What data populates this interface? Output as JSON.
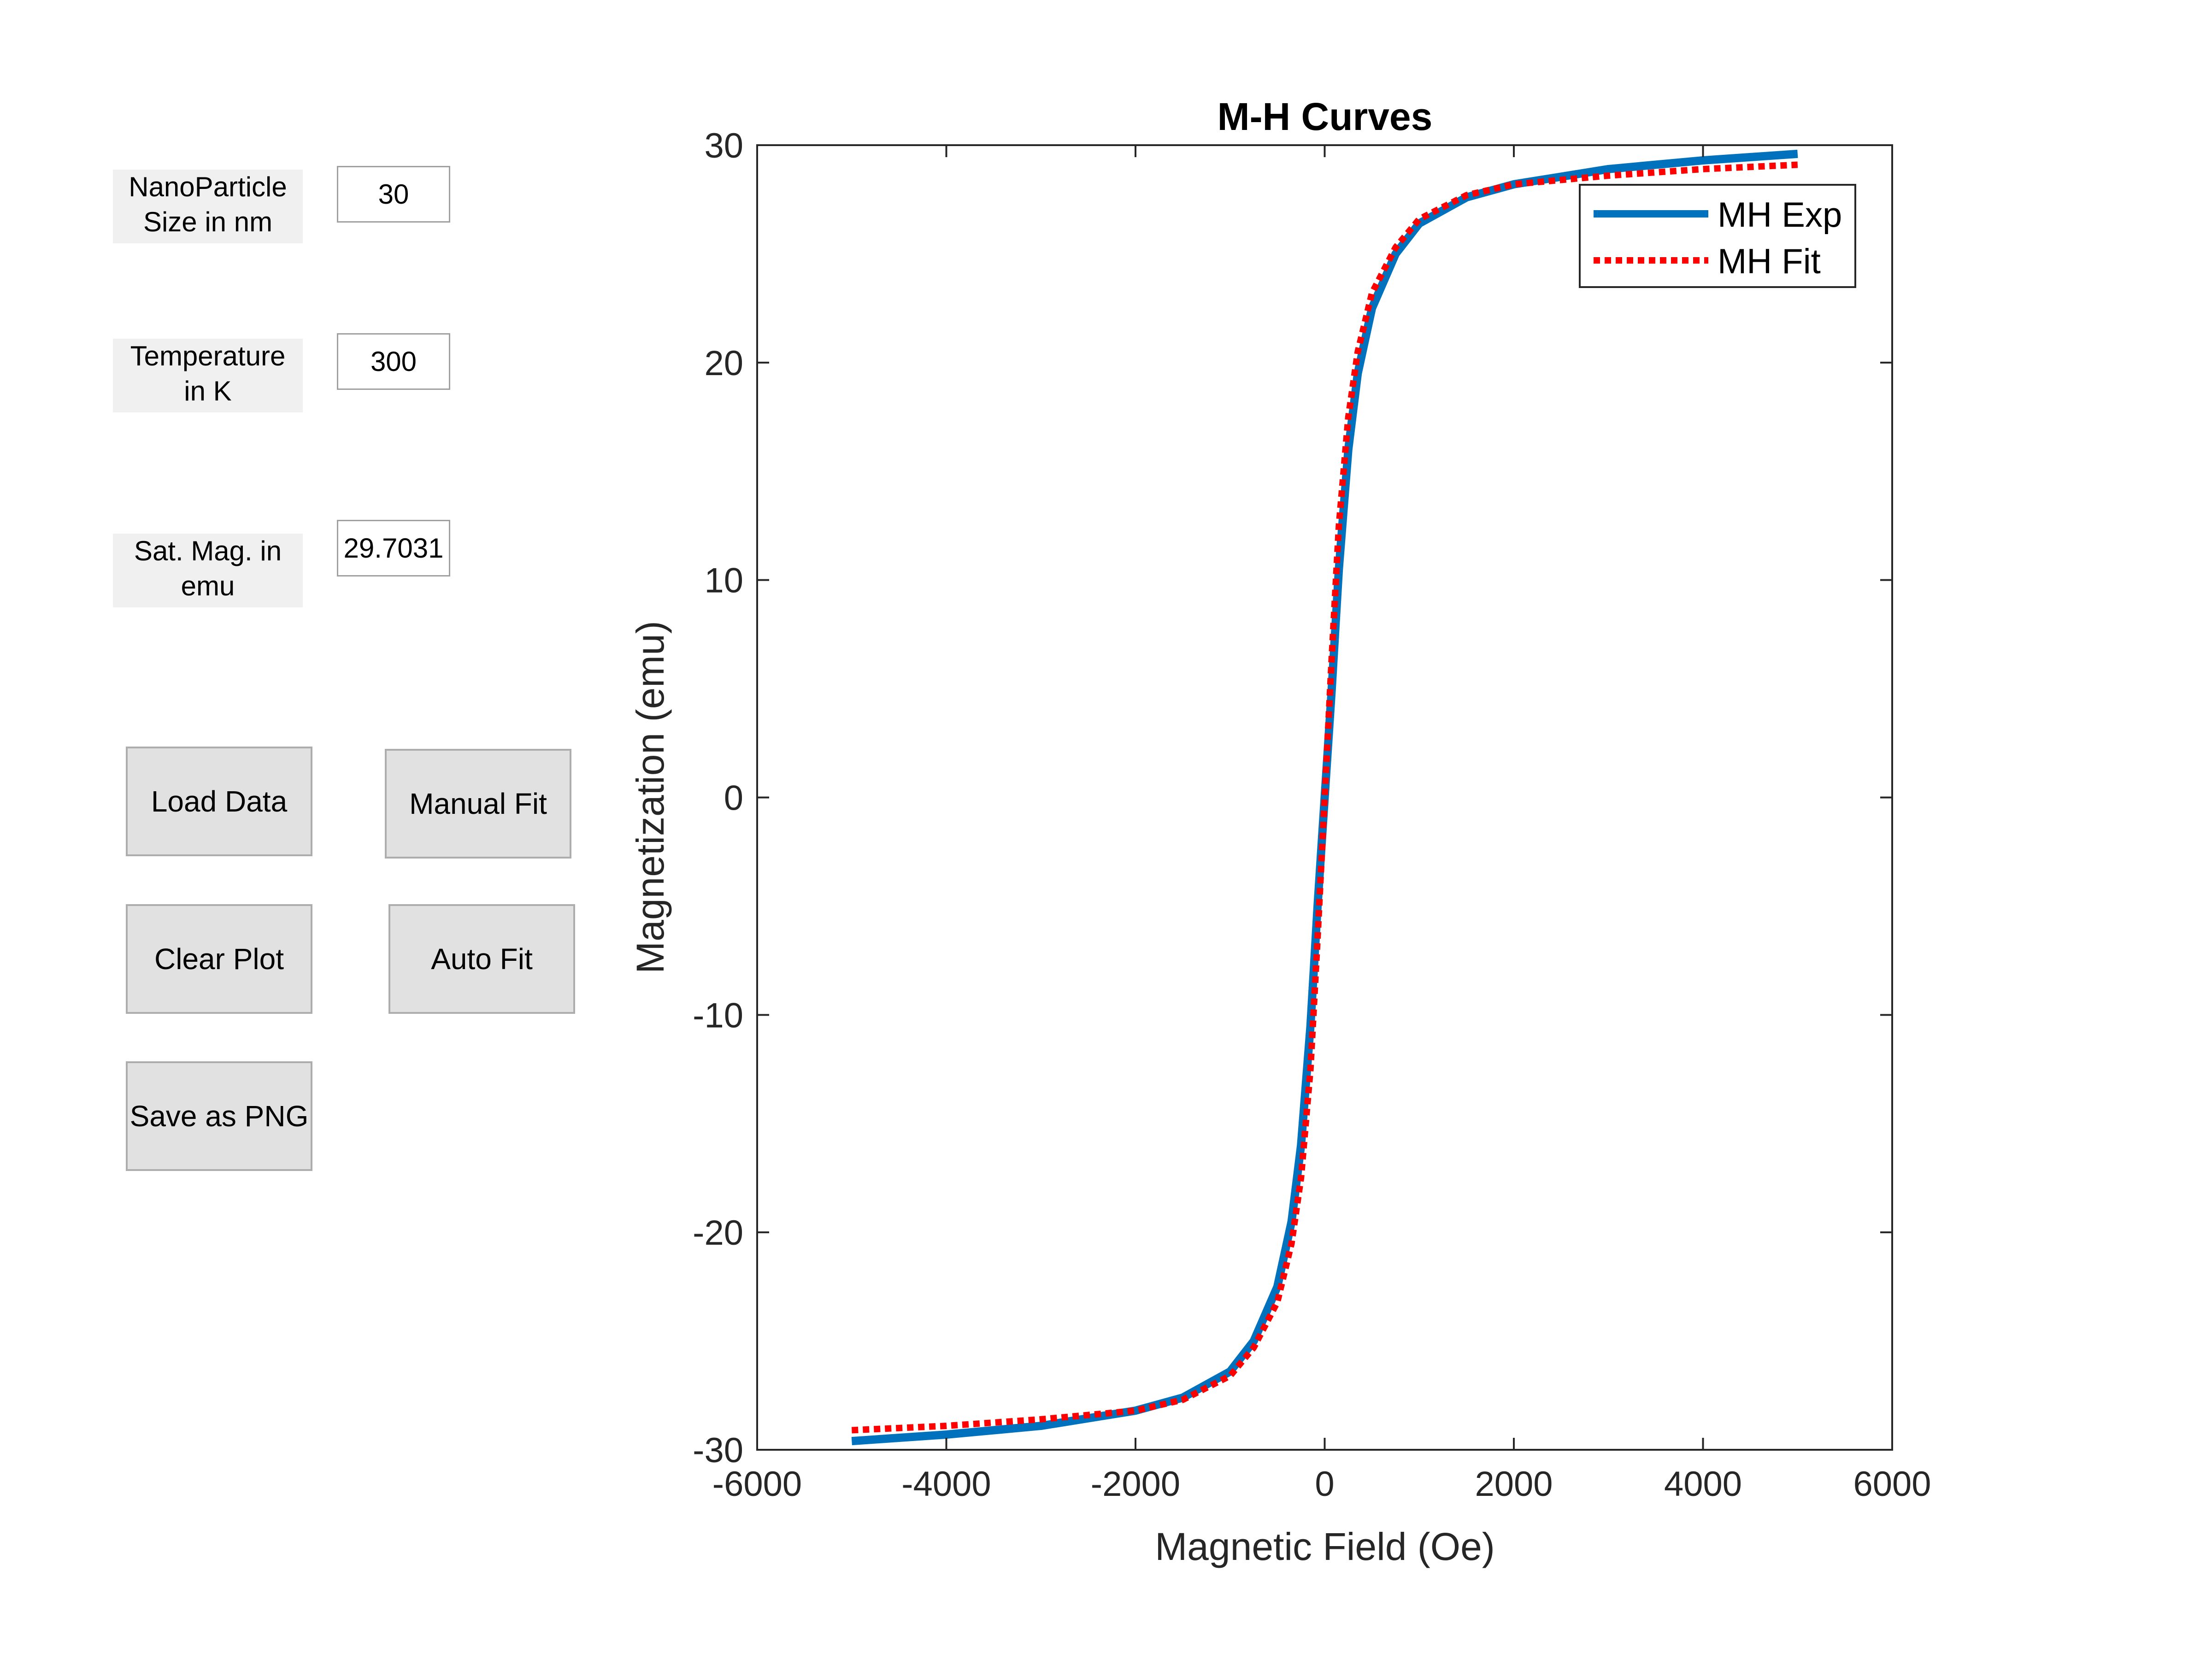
{
  "controls": {
    "size_label": "NanoParticle\nSize in nm",
    "size_value": "30",
    "temp_label": "Temperature\nin K",
    "temp_value": "300",
    "sat_label": "Sat. Mag. in\nemu",
    "sat_value": "29.7031"
  },
  "buttons": {
    "load_data": "Load Data",
    "manual_fit": "Manual Fit",
    "clear_plot": "Clear Plot",
    "auto_fit": "Auto Fit",
    "save_png": "Save as PNG"
  },
  "chart_data": {
    "type": "line",
    "title": "M-H Curves",
    "xlabel": "Magnetic Field (Oe)",
    "ylabel": "Magnetization (emu)",
    "xlim": [
      -6000,
      6000
    ],
    "ylim": [
      -30,
      30
    ],
    "xticks": [
      -6000,
      -4000,
      -2000,
      0,
      2000,
      4000,
      6000
    ],
    "yticks": [
      -30,
      -20,
      -10,
      0,
      10,
      20,
      30
    ],
    "legend_position": "top-right",
    "series": [
      {
        "name": "MH Exp",
        "color": "#0072bd",
        "style": "solid",
        "x": [
          -5000,
          -4000,
          -3000,
          -2000,
          -1500,
          -1000,
          -750,
          -500,
          -350,
          -250,
          -150,
          -75,
          0,
          75,
          150,
          250,
          350,
          500,
          750,
          1000,
          1500,
          2000,
          3000,
          4000,
          5000
        ],
        "y": [
          -29.6,
          -29.3,
          -28.9,
          -28.2,
          -27.6,
          -26.4,
          -25.0,
          -22.5,
          -19.5,
          -16.0,
          -10.5,
          -5.0,
          0.0,
          5.0,
          10.5,
          16.0,
          19.5,
          22.5,
          25.0,
          26.4,
          27.6,
          28.2,
          28.9,
          29.3,
          29.6
        ]
      },
      {
        "name": "MH Fit",
        "color": "#ff0000",
        "style": "dotted",
        "x": [
          -5000,
          -4000,
          -3000,
          -2000,
          -1500,
          -1000,
          -750,
          -500,
          -350,
          -250,
          -150,
          -75,
          0,
          75,
          150,
          250,
          350,
          500,
          750,
          1000,
          1500,
          2000,
          3000,
          4000,
          5000
        ],
        "y": [
          -29.1,
          -28.9,
          -28.6,
          -28.2,
          -27.7,
          -26.6,
          -25.3,
          -23.2,
          -20.5,
          -17.5,
          -12.5,
          -6.5,
          0.0,
          6.5,
          12.5,
          17.5,
          20.5,
          23.2,
          25.3,
          26.6,
          27.7,
          28.2,
          28.6,
          28.9,
          29.1
        ]
      }
    ]
  }
}
